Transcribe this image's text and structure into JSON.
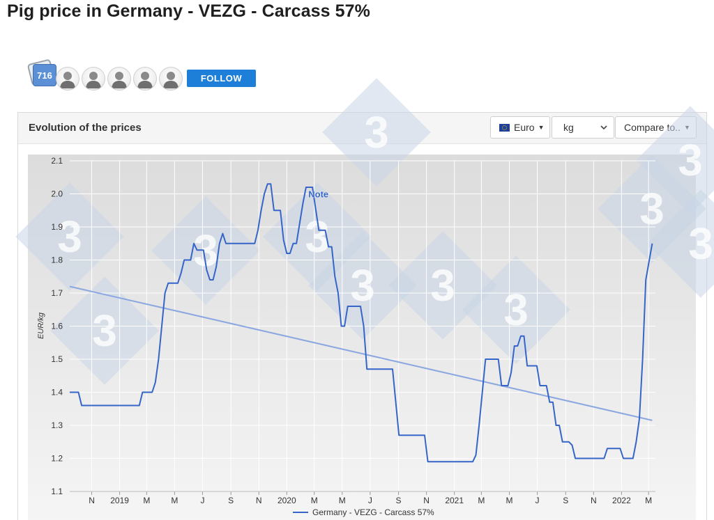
{
  "page": {
    "title": "Pig price in Germany - VEZG - Carcass 57%"
  },
  "followers": {
    "count": "716",
    "avatars": 5,
    "follow_label": "FOLLOW"
  },
  "panel": {
    "title": "Evolution of the prices",
    "currency_label": "Euro",
    "unit_value": "kg",
    "compare_label": "Compare to..",
    "icons": {
      "currency": "eu-flag-icon",
      "unit": "chevron-down-icon",
      "compare": "caret-down-icon"
    }
  },
  "chart_data": {
    "type": "line",
    "title": "",
    "xlabel": "",
    "ylabel": "EUR/kg",
    "ylim": [
      1.1,
      2.1
    ],
    "yticks": [
      1.1,
      1.2,
      1.3,
      1.4,
      1.5,
      1.6,
      1.7,
      1.8,
      1.9,
      2.0,
      2.1
    ],
    "xlim": [
      "2018-09-14",
      "2022-03-16"
    ],
    "xticks": [
      {
        "label": "N",
        "date": "2018-11-01"
      },
      {
        "label": "2019",
        "date": "2019-01-01"
      },
      {
        "label": "M",
        "date": "2019-03-01"
      },
      {
        "label": "M",
        "date": "2019-05-01"
      },
      {
        "label": "J",
        "date": "2019-07-01"
      },
      {
        "label": "S",
        "date": "2019-09-01"
      },
      {
        "label": "N",
        "date": "2019-11-01"
      },
      {
        "label": "2020",
        "date": "2020-01-01"
      },
      {
        "label": "M",
        "date": "2020-03-01"
      },
      {
        "label": "M",
        "date": "2020-05-01"
      },
      {
        "label": "J",
        "date": "2020-07-01"
      },
      {
        "label": "S",
        "date": "2020-09-01"
      },
      {
        "label": "N",
        "date": "2020-11-01"
      },
      {
        "label": "2021",
        "date": "2021-01-01"
      },
      {
        "label": "M",
        "date": "2021-03-01"
      },
      {
        "label": "M",
        "date": "2021-05-01"
      },
      {
        "label": "J",
        "date": "2021-07-01"
      },
      {
        "label": "S",
        "date": "2021-09-01"
      },
      {
        "label": "N",
        "date": "2021-11-01"
      },
      {
        "label": "2022",
        "date": "2022-01-01"
      },
      {
        "label": "M",
        "date": "2022-03-01"
      }
    ],
    "grid": true,
    "legend_position": "bottom-center",
    "annotations": [
      {
        "text": "Note",
        "date": "2020-03-01",
        "value": 2.0
      }
    ],
    "colors": {
      "series": "#3565c8",
      "trend": "#8aa7e0",
      "plot_bg": "#ebebeb",
      "watermark": "#c9d6e6"
    },
    "series": [
      {
        "name": "Germany - VEZG - Carcass 57%",
        "points": [
          [
            "2018-09-14",
            1.4
          ],
          [
            "2018-10-03",
            1.4
          ],
          [
            "2018-10-10",
            1.36
          ],
          [
            "2018-11-21",
            1.36
          ],
          [
            "2018-12-26",
            1.36
          ],
          [
            "2019-01-30",
            1.36
          ],
          [
            "2019-02-13",
            1.36
          ],
          [
            "2019-02-20",
            1.4
          ],
          [
            "2019-03-13",
            1.4
          ],
          [
            "2019-03-20",
            1.43
          ],
          [
            "2019-03-27",
            1.5
          ],
          [
            "2019-04-03",
            1.6
          ],
          [
            "2019-04-10",
            1.7
          ],
          [
            "2019-04-17",
            1.73
          ],
          [
            "2019-05-08",
            1.73
          ],
          [
            "2019-05-15",
            1.76
          ],
          [
            "2019-05-22",
            1.8
          ],
          [
            "2019-06-05",
            1.8
          ],
          [
            "2019-06-12",
            1.85
          ],
          [
            "2019-06-19",
            1.83
          ],
          [
            "2019-07-03",
            1.83
          ],
          [
            "2019-07-10",
            1.77
          ],
          [
            "2019-07-17",
            1.74
          ],
          [
            "2019-07-24",
            1.74
          ],
          [
            "2019-07-31",
            1.78
          ],
          [
            "2019-08-07",
            1.85
          ],
          [
            "2019-08-14",
            1.88
          ],
          [
            "2019-08-21",
            1.85
          ],
          [
            "2019-10-23",
            1.85
          ],
          [
            "2019-10-30",
            1.89
          ],
          [
            "2019-11-06",
            1.95
          ],
          [
            "2019-11-13",
            2.0
          ],
          [
            "2019-11-20",
            2.03
          ],
          [
            "2019-11-27",
            2.03
          ],
          [
            "2019-12-04",
            1.95
          ],
          [
            "2019-12-18",
            1.95
          ],
          [
            "2019-12-25",
            1.86
          ],
          [
            "2020-01-01",
            1.82
          ],
          [
            "2020-01-08",
            1.82
          ],
          [
            "2020-01-15",
            1.85
          ],
          [
            "2020-01-22",
            1.85
          ],
          [
            "2020-01-29",
            1.91
          ],
          [
            "2020-02-05",
            1.97
          ],
          [
            "2020-02-12",
            2.02
          ],
          [
            "2020-02-26",
            2.02
          ],
          [
            "2020-03-11",
            1.89
          ],
          [
            "2020-03-25",
            1.89
          ],
          [
            "2020-04-01",
            1.84
          ],
          [
            "2020-04-08",
            1.84
          ],
          [
            "2020-04-15",
            1.75
          ],
          [
            "2020-04-22",
            1.7
          ],
          [
            "2020-04-29",
            1.6
          ],
          [
            "2020-05-06",
            1.6
          ],
          [
            "2020-05-13",
            1.66
          ],
          [
            "2020-06-10",
            1.66
          ],
          [
            "2020-06-17",
            1.6
          ],
          [
            "2020-06-24",
            1.47
          ],
          [
            "2020-08-19",
            1.47
          ],
          [
            "2020-09-02",
            1.27
          ],
          [
            "2020-10-07",
            1.27
          ],
          [
            "2020-10-28",
            1.27
          ],
          [
            "2020-11-04",
            1.19
          ],
          [
            "2021-01-13",
            1.19
          ],
          [
            "2021-02-10",
            1.19
          ],
          [
            "2021-02-17",
            1.21
          ],
          [
            "2021-02-24",
            1.3
          ],
          [
            "2021-03-03",
            1.4
          ],
          [
            "2021-03-10",
            1.5
          ],
          [
            "2021-04-07",
            1.5
          ],
          [
            "2021-04-14",
            1.42
          ],
          [
            "2021-04-28",
            1.42
          ],
          [
            "2021-05-05",
            1.46
          ],
          [
            "2021-05-12",
            1.54
          ],
          [
            "2021-05-19",
            1.54
          ],
          [
            "2021-05-26",
            1.57
          ],
          [
            "2021-06-02",
            1.57
          ],
          [
            "2021-06-09",
            1.48
          ],
          [
            "2021-06-30",
            1.48
          ],
          [
            "2021-07-07",
            1.42
          ],
          [
            "2021-07-21",
            1.42
          ],
          [
            "2021-07-28",
            1.37
          ],
          [
            "2021-08-04",
            1.37
          ],
          [
            "2021-08-11",
            1.3
          ],
          [
            "2021-08-18",
            1.3
          ],
          [
            "2021-08-25",
            1.25
          ],
          [
            "2021-09-08",
            1.25
          ],
          [
            "2021-09-15",
            1.24
          ],
          [
            "2021-09-22",
            1.2
          ],
          [
            "2021-11-10",
            1.2
          ],
          [
            "2021-11-24",
            1.2
          ],
          [
            "2021-12-01",
            1.23
          ],
          [
            "2021-12-15",
            1.23
          ],
          [
            "2021-12-29",
            1.23
          ],
          [
            "2022-01-05",
            1.2
          ],
          [
            "2022-01-26",
            1.2
          ],
          [
            "2022-02-02",
            1.25
          ],
          [
            "2022-02-09",
            1.32
          ],
          [
            "2022-02-16",
            1.5
          ],
          [
            "2022-02-23",
            1.74
          ],
          [
            "2022-03-09",
            1.85
          ]
        ]
      }
    ],
    "trend": {
      "start": [
        "2018-09-14",
        1.72
      ],
      "end": [
        "2022-03-09",
        1.315
      ]
    }
  }
}
